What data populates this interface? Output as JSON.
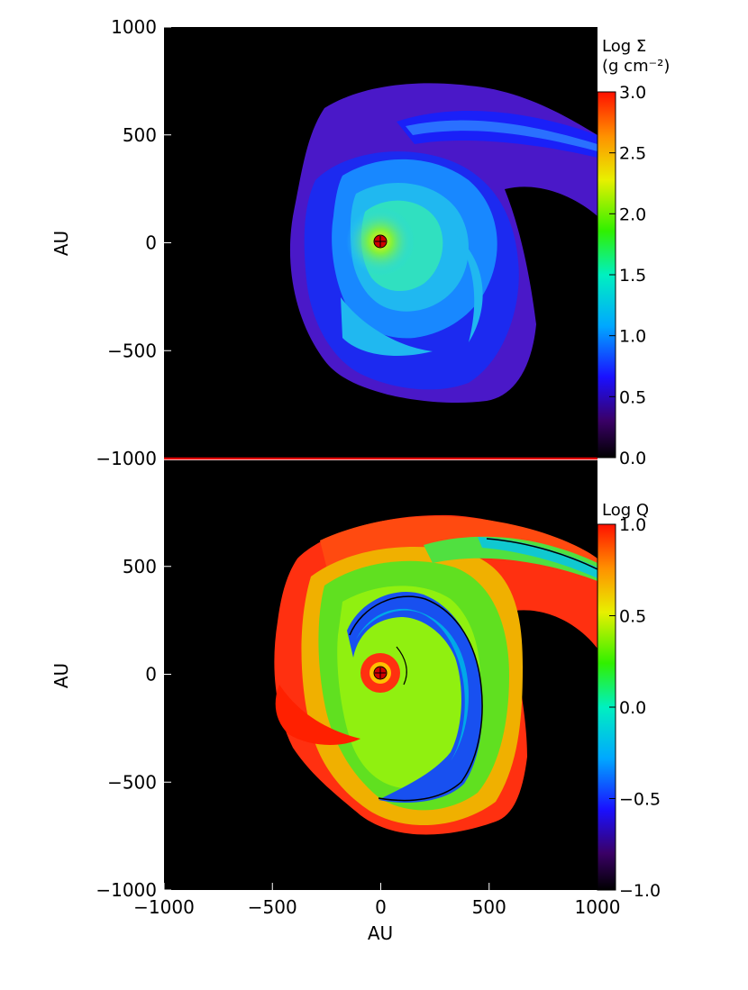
{
  "chart_data": [
    {
      "type": "heatmap",
      "panel": "top",
      "xlabel": "",
      "ylabel": "AU",
      "xlim": [
        -1000,
        1000
      ],
      "ylim": [
        -1000,
        1000
      ],
      "yticks": [
        "1000",
        "500",
        "0",
        "−500",
        "−1000"
      ],
      "ytick_values": [
        1000,
        500,
        0,
        -500,
        -1000
      ],
      "colorbar": {
        "title_line1": "Log Σ",
        "title_line2": "(g cm⁻²)",
        "range": [
          0.0,
          3.0
        ],
        "ticks": [
          "3.0",
          "2.5",
          "2.0",
          "1.5",
          "1.0",
          "0.5",
          "0.0"
        ],
        "tick_values": [
          3.0,
          2.5,
          2.0,
          1.5,
          1.0,
          0.5,
          0.0
        ]
      }
    },
    {
      "type": "heatmap",
      "panel": "bottom",
      "xlabel": "AU",
      "ylabel": "AU",
      "xlim": [
        -1000,
        1000
      ],
      "ylim": [
        -1000,
        1000
      ],
      "xticks": [
        "−1000",
        "−500",
        "0",
        "500",
        "1000"
      ],
      "xtick_values": [
        -1000,
        -500,
        0,
        500,
        1000
      ],
      "yticks": [
        "500",
        "0",
        "−500",
        "−1000"
      ],
      "ytick_values": [
        500,
        0,
        -500,
        -1000
      ],
      "colorbar": {
        "title_line1": "Log Q",
        "range": [
          -1.0,
          1.0
        ],
        "ticks": [
          "1.0",
          "0.5",
          "0.0",
          "−0.5",
          "−1.0"
        ],
        "tick_values": [
          1.0,
          0.5,
          0.0,
          -0.5,
          -1.0
        ]
      }
    }
  ],
  "colors": {
    "background": "#000000",
    "separator": "#e00000",
    "star": "#d00000"
  }
}
